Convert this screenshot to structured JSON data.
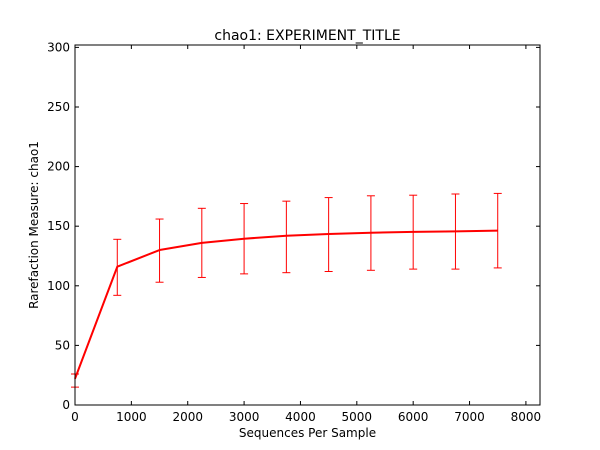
{
  "chart_data": {
    "type": "line",
    "title": "chao1: EXPERIMENT_TITLE",
    "xlabel": "Sequences Per Sample",
    "ylabel": "Rarefaction Measure: chao1",
    "xlim": [
      0,
      8250
    ],
    "ylim": [
      0,
      302
    ],
    "xticks": [
      0,
      1000,
      2000,
      3000,
      4000,
      5000,
      6000,
      7000,
      8000
    ],
    "yticks": [
      0,
      50,
      100,
      150,
      200,
      250,
      300
    ],
    "grid": false,
    "legend": "none",
    "series": [
      {
        "color": "#ff0000",
        "x": [
          0,
          750,
          1500,
          2250,
          3000,
          3750,
          4500,
          5250,
          6000,
          6750,
          7500
        ],
        "y": [
          22,
          116,
          130,
          136,
          139.5,
          142,
          143.5,
          144.5,
          145.2,
          145.7,
          146.3
        ],
        "err_low": [
          15,
          92,
          103,
          107,
          110,
          111,
          112,
          113,
          114,
          114,
          115
        ],
        "err_high": [
          26,
          139,
          156,
          165,
          169,
          171,
          174,
          175.5,
          176,
          177,
          177.5
        ]
      }
    ]
  }
}
